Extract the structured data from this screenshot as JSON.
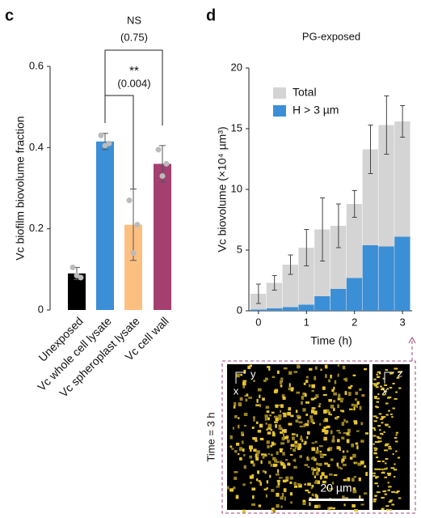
{
  "panel_labels": [
    "c",
    "d"
  ],
  "chart_data": [
    {
      "type": "bar",
      "ylabel": "Vc biofilm biovolume fraction",
      "categories": [
        "Unexposed",
        "Vc whole cell lysate",
        "Vc spheroplast lysate",
        "Vc cell wall"
      ],
      "values": [
        0.09,
        0.415,
        0.21,
        0.36
      ],
      "errors": [
        0.015,
        0.02,
        0.088,
        0.045
      ],
      "points": [
        [
          0.105,
          0.08,
          0.085
        ],
        [
          0.43,
          0.41,
          0.405
        ],
        [
          0.27,
          0.21,
          0.14
        ],
        [
          0.395,
          0.36,
          0.33
        ]
      ],
      "colors": [
        "#000000",
        "#3b8fd6",
        "#fdbf80",
        "#a3406f"
      ],
      "ylim": [
        0,
        0.6
      ],
      "yticks": [
        0,
        0.2,
        0.4,
        0.6
      ],
      "annotations": [
        "NS",
        "(0.75)",
        "**",
        "(0.004)"
      ]
    },
    {
      "type": "overlay-bar",
      "title": "PG-exposed",
      "xlabel": "Time (h)",
      "ylabel": "Vc biovolume (×10⁴ µm³)",
      "x": [
        0,
        0.333,
        0.667,
        1,
        1.333,
        1.667,
        2,
        2.333,
        2.667,
        3
      ],
      "series": [
        {
          "name": "Total",
          "color": "#d4d4d4",
          "values": [
            1.4,
            2.3,
            3.8,
            5.2,
            6.7,
            7.0,
            8.8,
            13.3,
            15.3,
            15.6
          ],
          "errors": [
            0.8,
            0.6,
            0.8,
            1.5,
            2.6,
            1.8,
            1.1,
            2.0,
            2.4,
            1.3
          ]
        },
        {
          "name": "H > 3 µm",
          "color": "#3b8fd6",
          "values": [
            0.1,
            0.2,
            0.3,
            0.5,
            1.2,
            1.8,
            2.7,
            5.4,
            5.3,
            6.1
          ]
        }
      ],
      "xlim": [
        -0.2,
        3.2
      ],
      "xticks": [
        0,
        1,
        2,
        3
      ],
      "ylim": [
        0,
        20
      ],
      "yticks": [
        0,
        5,
        10,
        15,
        20
      ]
    }
  ],
  "image": {
    "side_label": "Time = 3 h",
    "main_axes": [
      "y",
      "x"
    ],
    "side_axes": [
      "z",
      "x"
    ],
    "scale_bar": "20 µm"
  }
}
